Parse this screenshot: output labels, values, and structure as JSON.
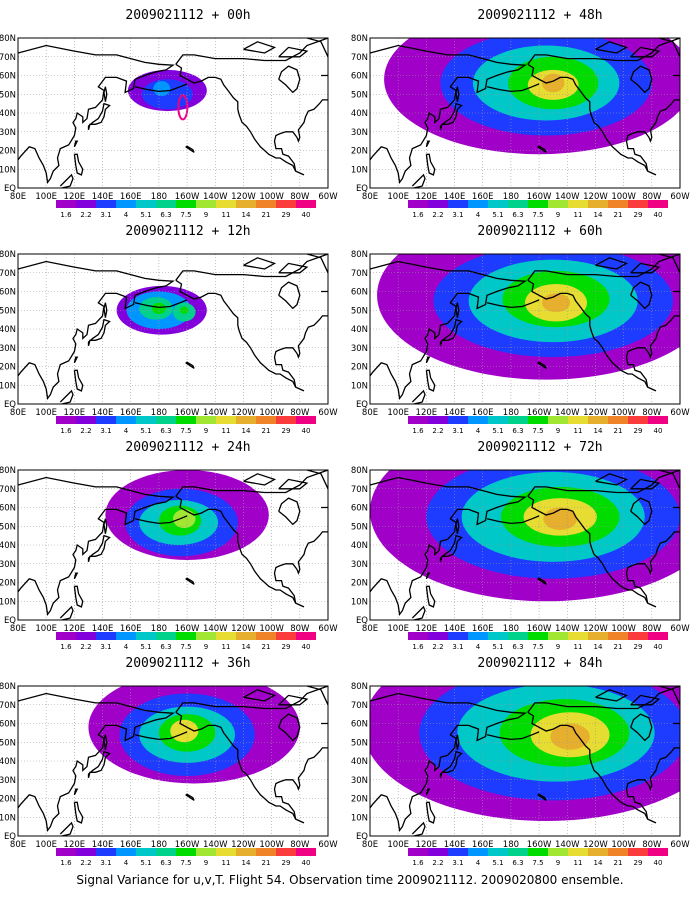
{
  "panels": [
    {
      "title": "2009021112 + 00h",
      "lead_hours": 0
    },
    {
      "title": "2009021112 + 12h",
      "lead_hours": 12
    },
    {
      "title": "2009021112 + 24h",
      "lead_hours": 24
    },
    {
      "title": "2009021112 + 36h",
      "lead_hours": 36
    },
    {
      "title": "2009021112 + 48h",
      "lead_hours": 48
    },
    {
      "title": "2009021112 + 60h",
      "lead_hours": 60
    },
    {
      "title": "2009021112 + 72h",
      "lead_hours": 72
    },
    {
      "title": "2009021112 + 84h",
      "lead_hours": 84
    }
  ],
  "lon_labels": [
    "80E",
    "100E",
    "120E",
    "140E",
    "160E",
    "180",
    "160W",
    "140W",
    "120W",
    "100W",
    "80W",
    "60W"
  ],
  "lat_labels": [
    "80N",
    "70N",
    "60N",
    "50N",
    "40N",
    "30N",
    "20N",
    "10N",
    "EQ"
  ],
  "colorbar": {
    "levels": [
      "1.6",
      "2.2",
      "3.1",
      "4",
      "5.1",
      "6.3",
      "7.5",
      "9",
      "11",
      "14",
      "21",
      "29",
      "40"
    ],
    "colors": [
      "#a000c8",
      "#8200dc",
      "#1e3cff",
      "#0096ff",
      "#00c8c8",
      "#00d28c",
      "#00dc00",
      "#a0e632",
      "#e6dc32",
      "#e6af2d",
      "#f08228",
      "#fa3c3c",
      "#f00082"
    ]
  },
  "caption": "Signal Variance for u,v,T. Flight 54. Observation time 2009021112. 2009020800 ensemble."
}
